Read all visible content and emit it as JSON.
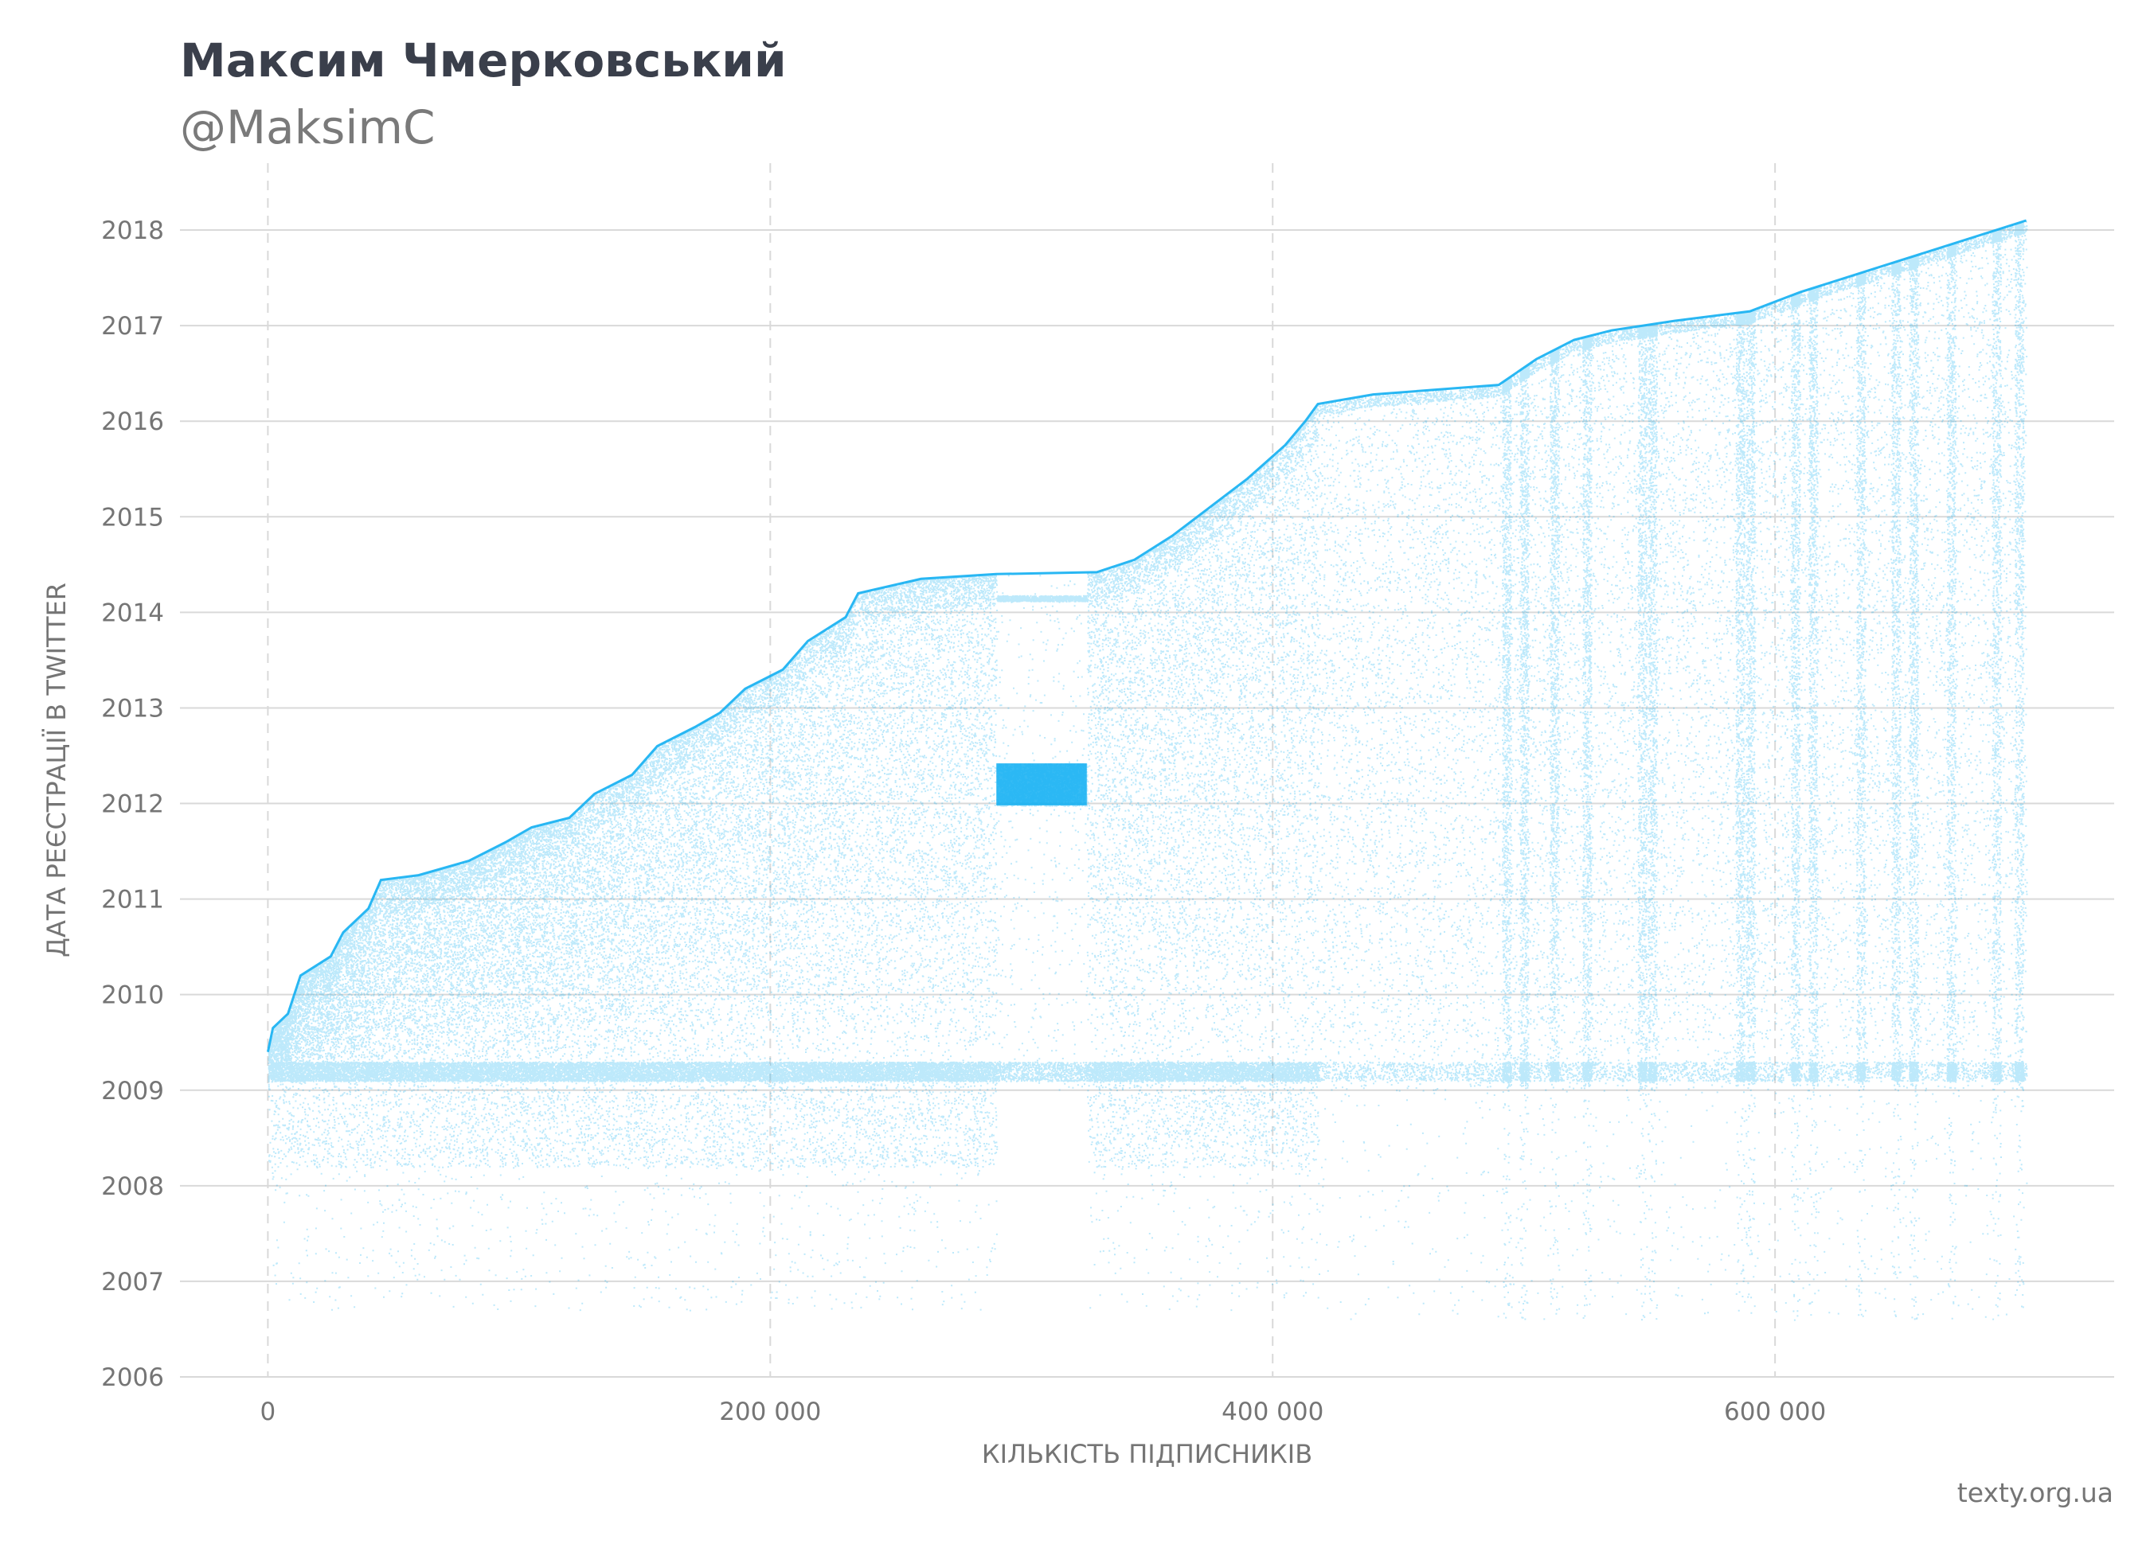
{
  "header": {
    "title": "Максим Чмерковський",
    "subtitle": "@MaksimC"
  },
  "footer": {
    "source": "texty.org.ua"
  },
  "colors": {
    "points": "#12aff2",
    "grid": "#d9d9d9",
    "text": "#757575",
    "title": "#3a3f4b"
  },
  "chart_data": {
    "type": "scatter",
    "xlabel": "КІЛЬКІСТЬ ПІДПИСНИКІВ",
    "ylabel": "ДАТА РЕЄСТРАЦІЇ В TWITTER",
    "xlim": [
      -35000,
      735000
    ],
    "ylim": [
      2006,
      2018.7
    ],
    "x_ticks": [
      0,
      200000,
      400000,
      600000
    ],
    "x_tick_labels": [
      "0",
      "200 000",
      "400 000",
      "600 000"
    ],
    "y_ticks": [
      2006,
      2007,
      2008,
      2009,
      2010,
      2011,
      2012,
      2013,
      2014,
      2015,
      2016,
      2017,
      2018
    ],
    "y_tick_labels": [
      "2006",
      "2007",
      "2008",
      "2009",
      "2010",
      "2011",
      "2012",
      "2013",
      "2014",
      "2015",
      "2016",
      "2017",
      "2018"
    ],
    "grid": {
      "x": "dashed",
      "y": "solid"
    },
    "upper_envelope": [
      [
        0,
        2009.4
      ],
      [
        2000,
        2009.65
      ],
      [
        8000,
        2009.8
      ],
      [
        13000,
        2010.2
      ],
      [
        25000,
        2010.4
      ],
      [
        30000,
        2010.65
      ],
      [
        40000,
        2010.9
      ],
      [
        45000,
        2011.2
      ],
      [
        60000,
        2011.25
      ],
      [
        80000,
        2011.4
      ],
      [
        95000,
        2011.6
      ],
      [
        105000,
        2011.75
      ],
      [
        120000,
        2011.85
      ],
      [
        130000,
        2012.1
      ],
      [
        145000,
        2012.3
      ],
      [
        155000,
        2012.6
      ],
      [
        170000,
        2012.8
      ],
      [
        180000,
        2012.95
      ],
      [
        190000,
        2013.2
      ],
      [
        205000,
        2013.4
      ],
      [
        215000,
        2013.7
      ],
      [
        230000,
        2013.95
      ],
      [
        235000,
        2014.2
      ],
      [
        260000,
        2014.35
      ],
      [
        290000,
        2014.4
      ],
      [
        330000,
        2014.42
      ],
      [
        345000,
        2014.55
      ],
      [
        360000,
        2014.8
      ],
      [
        375000,
        2015.1
      ],
      [
        390000,
        2015.4
      ],
      [
        405000,
        2015.75
      ],
      [
        413000,
        2016.0
      ],
      [
        418000,
        2016.18
      ],
      [
        440000,
        2016.28
      ],
      [
        490000,
        2016.38
      ],
      [
        505000,
        2016.65
      ],
      [
        520000,
        2016.85
      ],
      [
        535000,
        2016.95
      ],
      [
        560000,
        2017.05
      ],
      [
        590000,
        2017.15
      ],
      [
        610000,
        2017.35
      ],
      [
        640000,
        2017.6
      ],
      [
        670000,
        2017.85
      ],
      [
        700000,
        2018.1
      ]
    ],
    "dense_band": {
      "x": [
        0,
        415000
      ],
      "y": [
        2009.1,
        2009.3
      ]
    },
    "gap_segment": {
      "x": [
        290000,
        326000
      ],
      "dense_y": [
        2011.98,
        2012.42
      ]
    },
    "sparse_start_x": 418000,
    "vertical_streaks_x": [
      493000,
      500000,
      512000,
      525000,
      547000,
      551000,
      586000,
      590000,
      608000,
      615000,
      634000,
      648000,
      655000,
      670000,
      688000,
      697000
    ],
    "points_drawn": 110000
  }
}
